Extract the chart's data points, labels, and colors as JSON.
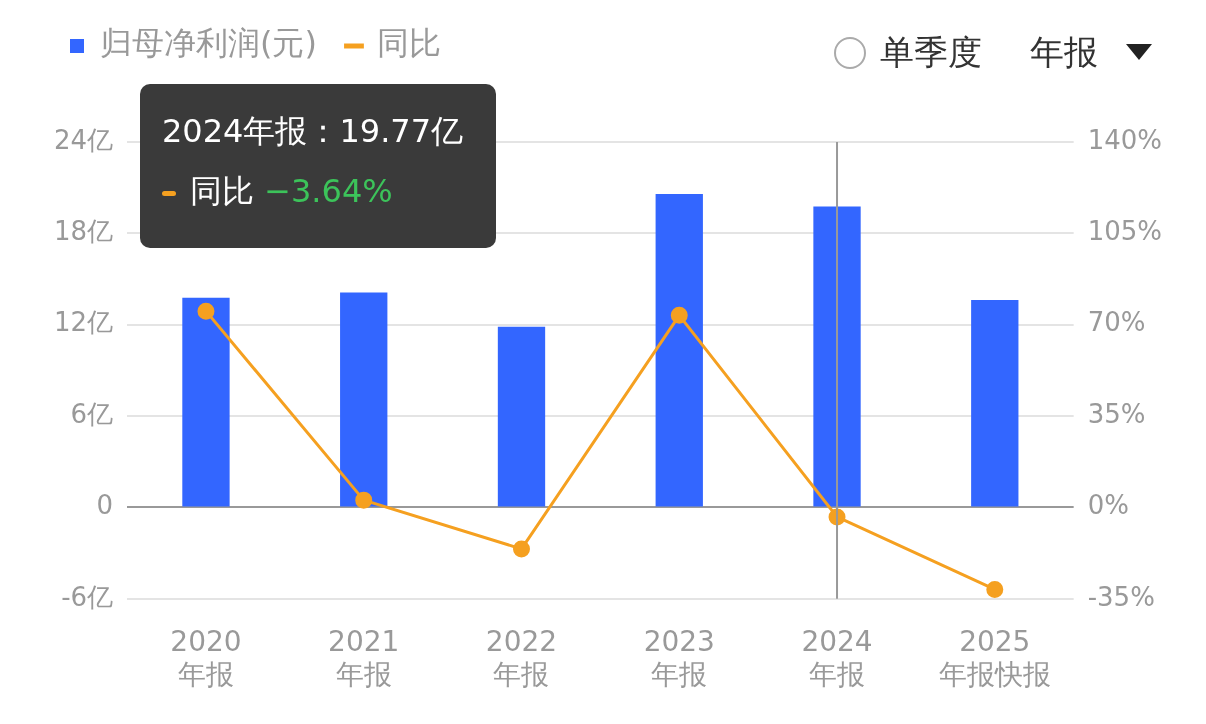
{
  "chart_data": {
    "type": "bar",
    "categories": [
      "2020\n年报",
      "2021\n年报",
      "2022\n年报",
      "2023\n年报",
      "2024\n年报",
      "2025\n年报快报"
    ],
    "series": [
      {
        "name": "归母净利润(元)",
        "color": "#3366ff",
        "values": [
          13.77,
          14.11,
          11.86,
          20.59,
          19.77,
          13.63
        ]
      },
      {
        "name": "同比",
        "type": "line",
        "axis": "y2",
        "color": "#f5a020",
        "values": [
          75.2,
          2.8,
          -15.9,
          73.6,
          -3.64,
          -31.4
        ]
      }
    ],
    "ylim": [
      -6,
      24
    ],
    "yticks": [
      {
        "value": -6,
        "label": "-6亿"
      },
      0,
      {
        "value": 6,
        "label": "6亿"
      },
      {
        "value": 12,
        "label": "12亿"
      },
      {
        "value": 18,
        "label": "18亿"
      },
      {
        "value": 24,
        "label": "24亿"
      }
    ],
    "y2lim": [
      -35,
      140
    ],
    "y2ticks": [
      {
        "value": -35,
        "label": "-35%"
      },
      {
        "value": 0,
        "label": "0%"
      },
      {
        "value": 35,
        "label": "35%"
      },
      {
        "value": 70,
        "label": "70%"
      },
      {
        "value": 105,
        "label": "105%"
      },
      {
        "value": 140,
        "label": "140%"
      }
    ],
    "ref_lines": [
      {
        "axis": "x",
        "value": "2024\n年报",
        "color": "#999999"
      }
    ],
    "annotations": [
      "2024年报：19.77亿",
      "同比 −3.64%",
      "单季度",
      "年报"
    ],
    "grid": "y",
    "legend": "top left",
    "marker": "circle",
    "line_style": "solid"
  }
}
